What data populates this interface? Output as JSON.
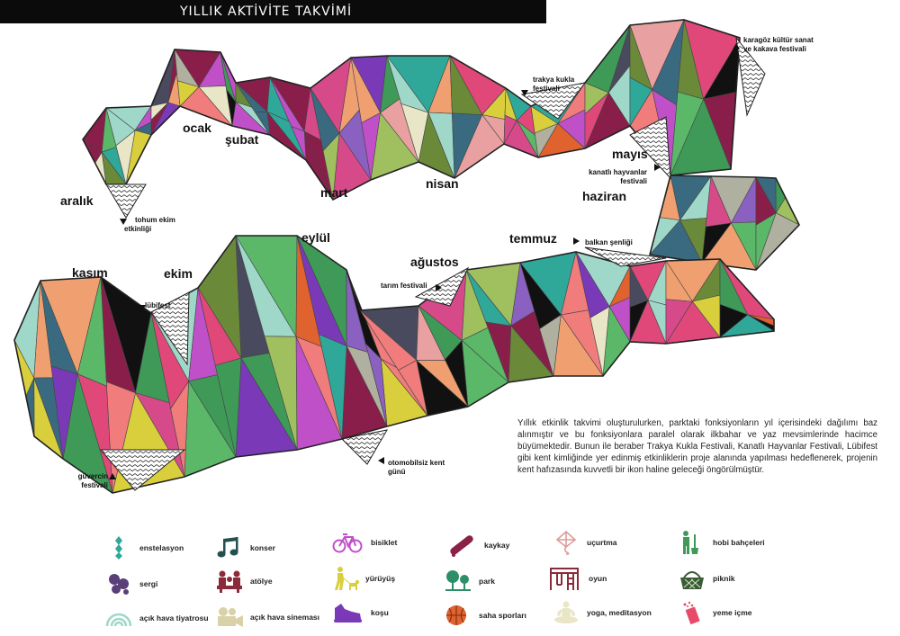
{
  "header": {
    "title": "YILLIK AKTİVİTE TAKVİMİ"
  },
  "months": {
    "aralik": "aralık",
    "ocak": "ocak",
    "subat": "şubat",
    "mart": "mart",
    "nisan": "nisan",
    "mayis": "mayıs",
    "haziran": "haziran",
    "temmuz": "temmuz",
    "agustos": "ağustos",
    "eylul": "eylül",
    "ekim": "ekim",
    "kasim": "kasım"
  },
  "events": {
    "tohum_1": "tohum ekim",
    "tohum_2": "etkinliği",
    "trakya_1": "trakya kukla",
    "trakya_2": "festivali",
    "karagoz_1": "karagöz kültür sanat",
    "karagoz_2": "ve kakava festivali",
    "kanatli_1": "kanatlı hayvanlar",
    "kanatli_2": "festivali",
    "balkan": "balkan şenliği",
    "tarim": "tarım festivali",
    "lubifest": "lübifest",
    "otomobilsiz_1": "otomobilsiz kent",
    "otomobilsiz_2": "günü",
    "guvercin_1": "güvercin",
    "guvercin_2": "festivali"
  },
  "description": "Yıllık etkinlik takvimi oluşturulurken, parktaki fonksiyonların yıl içerisindeki dağılımı baz alınmıştır ve bu fonksiyonlara paralel olarak ilkbahar ve yaz mevsimlerinde hacimce büyümektedir. Bunun ile beraber Trakya Kukla Festivali, Kanatlı Hayvanlar Festivali, Lübifest gibi kent kimliğinde yer edinmiş etkinliklerin proje alanında yapılması hedeflenerek, projenin kent hafızasında kuvvetli bir ikon haline geleceği öngörülmüştür.",
  "legend": {
    "enstelasyon": "enstelasyon",
    "sergi": "sergi",
    "acik_hava_tiyatrosu": "açık hava tiyatrosu",
    "konser": "konser",
    "atolye": "atölye",
    "acik_hava_sinemasi": "açık hava sineması",
    "bisiklet": "bisiklet",
    "yuruyus": "yürüyüş",
    "kosu": "koşu",
    "kaykay": "kaykay",
    "park": "park",
    "saha_sporlari": "saha sporları",
    "ucurtma": "uçurtma",
    "oyun": "oyun",
    "yoga": "yoga, meditasyon",
    "hobi": "hobi bahçeleri",
    "piknik": "piknik",
    "yeme_icme": "yeme içme"
  },
  "colors": {
    "enstelasyon": "#2fa89a",
    "sergi": "#5a3f78",
    "acik_hava_tiyatrosu": "#9fd8c8",
    "konser": "#264f4f",
    "atolye": "#8a2a3a",
    "acik_hava_sinemasi": "#d9d1a8",
    "bisiklet": "#c050c8",
    "yuruyus": "#d9cf3c",
    "kosu": "#7a3ab8",
    "kaykay": "#8a2248",
    "park": "#2e8e68",
    "saha_sporlari": "#e0622e",
    "ucurtma": "#e09a9a",
    "oyun": "#8a2a3a",
    "yoga": "#e8e6c6",
    "hobi": "#3f9a58",
    "piknik": "#3b5a38",
    "yeme_icme": "#e84a6a"
  }
}
